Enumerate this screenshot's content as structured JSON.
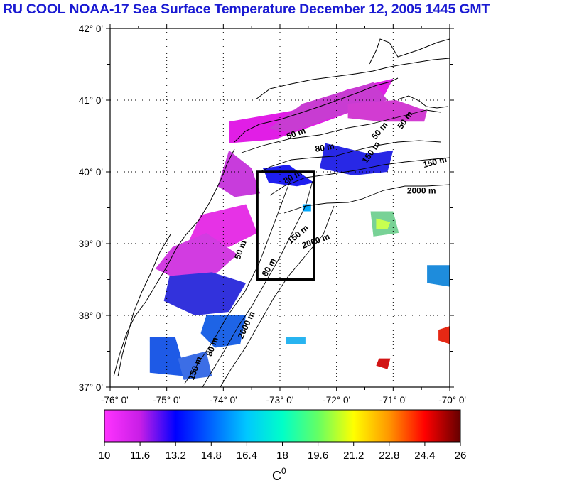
{
  "title": "RU COOL  NOAA-17 Sea Surface Temperature December 12, 2005 1445 GMT",
  "map": {
    "lat_labels": [
      "42° 0'",
      "41° 0'",
      "40° 0'",
      "39° 0'",
      "38° 0'",
      "37° 0'"
    ],
    "lon_labels": [
      "-76° 0'",
      "-75° 0'",
      "-74° 0'",
      "-73° 0'",
      "-72° 0'",
      "-71° 0'",
      "-70° 0'"
    ],
    "lat_range": [
      37,
      42
    ],
    "lon_range": [
      -76,
      -70
    ],
    "grid": "dotted",
    "study_box": {
      "lon": [
        -73.4,
        -72.4
      ],
      "lat": [
        38.5,
        40.0
      ]
    },
    "contour_labels": [
      {
        "text": "50 m",
        "lon": -72.7,
        "lat": 40.5,
        "rot": -20
      },
      {
        "text": "80 m",
        "lon": -72.2,
        "lat": 40.3,
        "rot": -10
      },
      {
        "text": "150 m",
        "lon": -71.35,
        "lat": 40.25,
        "rot": -55
      },
      {
        "text": "50 m",
        "lon": -71.2,
        "lat": 40.55,
        "rot": -50
      },
      {
        "text": "50 m",
        "lon": -70.75,
        "lat": 40.7,
        "rot": -55
      },
      {
        "text": "150 m",
        "lon": -70.25,
        "lat": 40.1,
        "rot": -15
      },
      {
        "text": "2000 m",
        "lon": -70.5,
        "lat": 39.7,
        "rot": 0
      },
      {
        "text": "80 m",
        "lon": -72.75,
        "lat": 39.9,
        "rot": -30
      },
      {
        "text": "150 m",
        "lon": -72.65,
        "lat": 39.1,
        "rot": -40
      },
      {
        "text": "2000 m",
        "lon": -72.35,
        "lat": 39.0,
        "rot": -20
      },
      {
        "text": "50 m",
        "lon": -73.65,
        "lat": 38.9,
        "rot": -70
      },
      {
        "text": "80 m",
        "lon": -73.15,
        "lat": 38.65,
        "rot": -60
      },
      {
        "text": "2000 m",
        "lon": -73.55,
        "lat": 37.85,
        "rot": -65
      },
      {
        "text": "80 m",
        "lon": -74.15,
        "lat": 37.55,
        "rot": -70
      },
      {
        "text": "150 m",
        "lon": -74.45,
        "lat": 37.25,
        "rot": -70
      }
    ]
  },
  "colorbar": {
    "ticks": [
      "10",
      "11.6",
      "13.2",
      "14.8",
      "16.4",
      "18",
      "19.6",
      "21.2",
      "22.8",
      "24.4",
      "26"
    ],
    "unit": "C",
    "unit_sup": "0",
    "colors": [
      "#ff33ff",
      "#c81ee6",
      "#0000ff",
      "#0064ff",
      "#00c8ff",
      "#00ffc8",
      "#64ff64",
      "#ffff00",
      "#ff9600",
      "#ff0000",
      "#640000"
    ]
  },
  "sst_patches": [
    {
      "pts": [
        [
          -73.9,
          40.7
        ],
        [
          -72.8,
          40.85
        ],
        [
          -71.8,
          41.15
        ],
        [
          -71.0,
          41.3
        ],
        [
          -71.2,
          41.0
        ],
        [
          -72.2,
          40.7
        ],
        [
          -73.1,
          40.45
        ],
        [
          -73.9,
          40.4
        ]
      ],
      "color": "#e11ee6"
    },
    {
      "pts": [
        [
          -72.6,
          40.95
        ],
        [
          -71.35,
          41.25
        ],
        [
          -71.1,
          41.0
        ],
        [
          -72.1,
          40.75
        ],
        [
          -72.8,
          40.55
        ],
        [
          -73.2,
          40.6
        ]
      ],
      "color": "#c83cd2"
    },
    {
      "pts": [
        [
          -71.8,
          40.95
        ],
        [
          -70.95,
          41.0
        ],
        [
          -70.4,
          40.85
        ],
        [
          -70.45,
          40.7
        ],
        [
          -71.2,
          40.7
        ],
        [
          -71.8,
          40.75
        ]
      ],
      "color": "#d23cd2"
    },
    {
      "pts": [
        [
          -72.2,
          40.4
        ],
        [
          -71.4,
          40.25
        ],
        [
          -71.0,
          40.3
        ],
        [
          -71.1,
          40.0
        ],
        [
          -71.7,
          39.95
        ],
        [
          -72.3,
          40.05
        ]
      ],
      "color": "#2828e6"
    },
    {
      "pts": [
        [
          -73.3,
          40.05
        ],
        [
          -72.85,
          40.1
        ],
        [
          -72.4,
          39.85
        ],
        [
          -72.7,
          39.8
        ],
        [
          -73.2,
          39.85
        ]
      ],
      "color": "#1e1ef0"
    },
    {
      "pts": [
        [
          -73.9,
          40.3
        ],
        [
          -73.5,
          40.05
        ],
        [
          -73.35,
          39.7
        ],
        [
          -73.8,
          39.65
        ],
        [
          -74.1,
          39.8
        ]
      ],
      "color": "#c83cdc"
    },
    {
      "pts": [
        [
          -74.4,
          39.4
        ],
        [
          -73.6,
          39.55
        ],
        [
          -73.4,
          39.15
        ],
        [
          -73.9,
          38.95
        ],
        [
          -74.6,
          39.05
        ]
      ],
      "color": "#e632e6"
    },
    {
      "pts": [
        [
          -74.9,
          38.95
        ],
        [
          -74.3,
          39.15
        ],
        [
          -73.75,
          38.85
        ],
        [
          -74.1,
          38.6
        ],
        [
          -74.8,
          38.5
        ],
        [
          -75.2,
          38.65
        ]
      ],
      "color": "#d23ce1"
    },
    {
      "pts": [
        [
          -74.95,
          38.55
        ],
        [
          -74.2,
          38.6
        ],
        [
          -73.6,
          38.45
        ],
        [
          -73.9,
          38.05
        ],
        [
          -74.5,
          38.0
        ],
        [
          -75.05,
          38.2
        ]
      ],
      "color": "#3232dc"
    },
    {
      "pts": [
        [
          -74.3,
          38.0
        ],
        [
          -73.6,
          38.0
        ],
        [
          -73.7,
          37.6
        ],
        [
          -74.15,
          37.55
        ],
        [
          -74.4,
          37.75
        ]
      ],
      "color": "#1e64e6"
    },
    {
      "pts": [
        [
          -75.3,
          37.7
        ],
        [
          -74.85,
          37.7
        ],
        [
          -74.65,
          37.15
        ],
        [
          -75.3,
          37.2
        ]
      ],
      "color": "#1e5ae6"
    },
    {
      "pts": [
        [
          -74.8,
          37.4
        ],
        [
          -74.3,
          37.5
        ],
        [
          -74.2,
          37.15
        ],
        [
          -74.7,
          37.1
        ]
      ],
      "color": "#3c6ee6"
    },
    {
      "pts": [
        [
          -71.4,
          39.45
        ],
        [
          -71.0,
          39.45
        ],
        [
          -70.9,
          39.15
        ],
        [
          -71.35,
          39.1
        ]
      ],
      "color": "#78d296"
    },
    {
      "pts": [
        [
          -71.3,
          39.35
        ],
        [
          -71.05,
          39.3
        ],
        [
          -71.1,
          39.2
        ],
        [
          -71.3,
          39.2
        ]
      ],
      "color": "#c8ff50"
    },
    {
      "pts": [
        [
          -70.4,
          38.7
        ],
        [
          -70.0,
          38.7
        ],
        [
          -70.0,
          38.4
        ],
        [
          -70.4,
          38.45
        ]
      ],
      "color": "#1e8cdc"
    },
    {
      "pts": [
        [
          -70.2,
          37.8
        ],
        [
          -70.0,
          37.85
        ],
        [
          -70.0,
          37.6
        ],
        [
          -70.2,
          37.65
        ]
      ],
      "color": "#e62814"
    },
    {
      "pts": [
        [
          -71.25,
          37.4
        ],
        [
          -71.05,
          37.4
        ],
        [
          -71.1,
          37.25
        ],
        [
          -71.3,
          37.3
        ]
      ],
      "color": "#d21414"
    },
    {
      "pts": [
        [
          -72.6,
          39.55
        ],
        [
          -72.45,
          39.55
        ],
        [
          -72.45,
          39.45
        ],
        [
          -72.6,
          39.45
        ]
      ],
      "color": "#00aaff"
    },
    {
      "pts": [
        [
          -72.9,
          37.7
        ],
        [
          -72.55,
          37.7
        ],
        [
          -72.55,
          37.6
        ],
        [
          -72.9,
          37.6
        ]
      ],
      "color": "#28b4f0"
    }
  ]
}
